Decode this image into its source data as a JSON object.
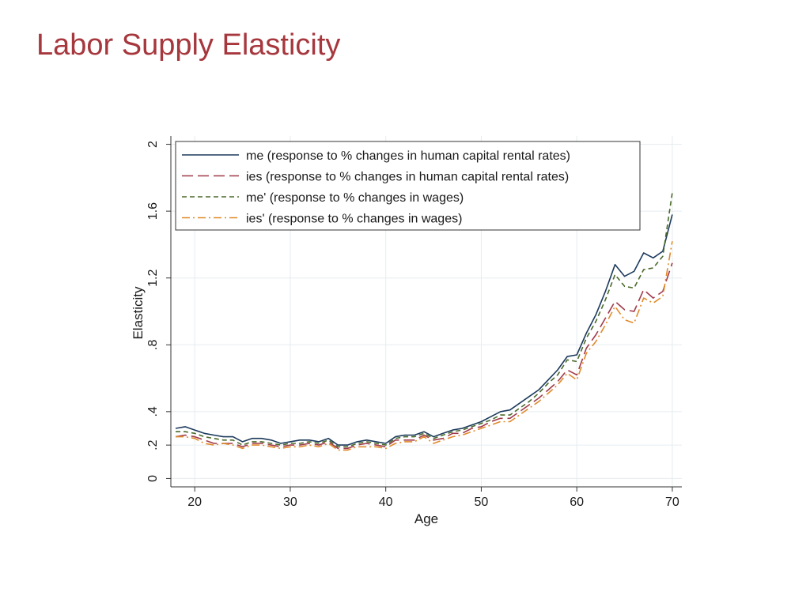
{
  "slide": {
    "title": "Labor Supply Elasticity"
  },
  "chart_data": {
    "type": "line",
    "xlabel": "Age",
    "ylabel": "Elasticity",
    "xlim": [
      17.5,
      71
    ],
    "ylim": [
      -0.05,
      2.05
    ],
    "x_ticks": [
      20,
      30,
      40,
      50,
      60,
      70
    ],
    "x_tick_labels": [
      "20",
      "30",
      "40",
      "50",
      "60",
      "70"
    ],
    "y_ticks": [
      0,
      0.2,
      0.4,
      0.8,
      1.2,
      1.6,
      2
    ],
    "y_tick_labels": [
      "0",
      ".2",
      ".4",
      ".8",
      "1.2",
      "1.6",
      "2"
    ],
    "grid": true,
    "legend_position": "top-left (inside plot)",
    "x": [
      18,
      19,
      20,
      21,
      22,
      23,
      24,
      25,
      26,
      27,
      28,
      29,
      30,
      31,
      32,
      33,
      34,
      35,
      36,
      37,
      38,
      39,
      40,
      41,
      42,
      43,
      44,
      45,
      46,
      47,
      48,
      49,
      50,
      51,
      52,
      53,
      54,
      55,
      56,
      57,
      58,
      59,
      60,
      61,
      62,
      63,
      64,
      65,
      66,
      67,
      68,
      69,
      70
    ],
    "series": [
      {
        "name": "me (response to % changes in human capital rental rates)",
        "color": "#1c3a5c",
        "dash": "solid",
        "values": [
          0.3,
          0.31,
          0.29,
          0.27,
          0.26,
          0.25,
          0.25,
          0.22,
          0.24,
          0.24,
          0.23,
          0.21,
          0.22,
          0.23,
          0.23,
          0.22,
          0.24,
          0.2,
          0.2,
          0.22,
          0.23,
          0.22,
          0.21,
          0.25,
          0.26,
          0.26,
          0.28,
          0.25,
          0.27,
          0.29,
          0.3,
          0.32,
          0.34,
          0.37,
          0.4,
          0.41,
          0.45,
          0.49,
          0.53,
          0.59,
          0.65,
          0.73,
          0.74,
          0.87,
          0.98,
          1.12,
          1.28,
          1.21,
          1.24,
          1.35,
          1.32,
          1.36,
          1.58
        ]
      },
      {
        "name": "ies (response to % changes in human capital rental rates)",
        "color": "#a03a4a",
        "dash": "longdash",
        "values": [
          0.25,
          0.26,
          0.25,
          0.23,
          0.21,
          0.21,
          0.21,
          0.19,
          0.21,
          0.21,
          0.2,
          0.19,
          0.2,
          0.2,
          0.21,
          0.2,
          0.22,
          0.18,
          0.18,
          0.2,
          0.21,
          0.2,
          0.19,
          0.23,
          0.23,
          0.23,
          0.26,
          0.23,
          0.24,
          0.27,
          0.27,
          0.3,
          0.31,
          0.34,
          0.36,
          0.36,
          0.4,
          0.44,
          0.48,
          0.53,
          0.58,
          0.65,
          0.62,
          0.78,
          0.86,
          0.96,
          1.06,
          1.01,
          1.0,
          1.13,
          1.08,
          1.12,
          1.29
        ]
      },
      {
        "name": "me' (response to % changes in wages)",
        "color": "#4a6a2a",
        "dash": "shortdash",
        "values": [
          0.28,
          0.28,
          0.27,
          0.25,
          0.24,
          0.23,
          0.23,
          0.2,
          0.22,
          0.22,
          0.21,
          0.2,
          0.21,
          0.21,
          0.22,
          0.21,
          0.23,
          0.19,
          0.19,
          0.21,
          0.22,
          0.21,
          0.2,
          0.24,
          0.25,
          0.25,
          0.27,
          0.24,
          0.26,
          0.28,
          0.29,
          0.31,
          0.33,
          0.35,
          0.38,
          0.38,
          0.42,
          0.46,
          0.51,
          0.57,
          0.62,
          0.71,
          0.7,
          0.84,
          0.94,
          1.07,
          1.22,
          1.15,
          1.14,
          1.25,
          1.26,
          1.33,
          1.71
        ]
      },
      {
        "name": "ies' (response to % changes in wages)",
        "color": "#e08a2a",
        "dash": "dashdot",
        "values": [
          0.25,
          0.25,
          0.24,
          0.21,
          0.2,
          0.21,
          0.2,
          0.18,
          0.2,
          0.2,
          0.19,
          0.18,
          0.19,
          0.19,
          0.2,
          0.19,
          0.21,
          0.17,
          0.17,
          0.19,
          0.19,
          0.19,
          0.18,
          0.21,
          0.22,
          0.22,
          0.25,
          0.21,
          0.23,
          0.25,
          0.26,
          0.28,
          0.3,
          0.32,
          0.34,
          0.34,
          0.38,
          0.42,
          0.46,
          0.51,
          0.56,
          0.63,
          0.59,
          0.75,
          0.82,
          0.92,
          1.03,
          0.95,
          0.93,
          1.08,
          1.05,
          1.09,
          1.42
        ]
      }
    ]
  }
}
